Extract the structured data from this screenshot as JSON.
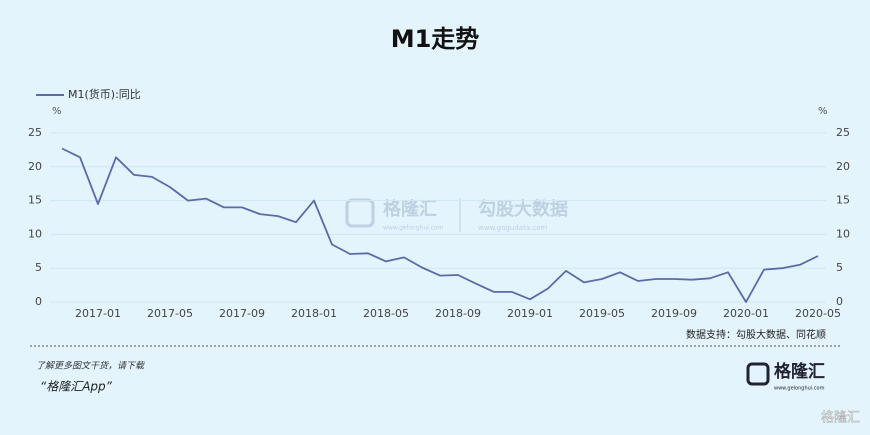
{
  "chart_data": {
    "type": "line",
    "title": "M1走势",
    "categories": [
      null,
      null,
      "2017-01",
      null,
      null,
      null,
      "2017-05",
      null,
      null,
      null,
      "2017-09",
      null,
      null,
      null,
      "2018-01",
      null,
      null,
      null,
      "2018-05",
      null,
      null,
      null,
      "2018-09",
      null,
      null,
      null,
      "2019-01",
      null,
      null,
      null,
      "2019-05",
      null,
      null,
      null,
      "2019-09",
      null,
      null,
      null,
      "2020-01",
      null,
      null,
      null,
      "2020-05"
    ],
    "series": [
      {
        "name": "M1(货币):同比",
        "color": "#5b6aa9",
        "values": [
          22.7,
          21.4,
          14.5,
          21.4,
          18.8,
          18.5,
          17.0,
          15.0,
          15.3,
          14.0,
          14.0,
          13.0,
          12.7,
          11.8,
          15.0,
          8.5,
          7.1,
          7.2,
          6.0,
          6.6,
          5.1,
          3.9,
          4.0,
          2.7,
          1.5,
          1.5,
          0.4,
          2.0,
          4.6,
          2.9,
          3.4,
          4.4,
          3.1,
          3.4,
          3.4,
          3.3,
          3.5,
          4.4,
          0.0,
          4.8,
          5.0,
          5.5,
          6.8
        ]
      }
    ],
    "ylim": [
      0,
      25
    ],
    "yticks": [
      0,
      5,
      10,
      15,
      20,
      25
    ],
    "y2lim": [
      0,
      25
    ],
    "y2ticks": [
      0,
      5,
      10,
      15,
      20,
      25
    ],
    "y_unit": "%",
    "y2_unit": "%",
    "grid": true,
    "source": "数据支持：勾股大数据、同花顺"
  },
  "footer": {
    "line1": "了解更多图文干货，请下载",
    "line2": "“格隆汇App”",
    "logo": "格隆汇",
    "logo_url": "www.gelonghui.com",
    "corner": "格隆汇"
  },
  "watermark": {
    "brand": "格隆汇",
    "brand_url": "www.gelonghui.com",
    "partner": "勾股大数据",
    "partner_url": "www.gogudata.com"
  }
}
